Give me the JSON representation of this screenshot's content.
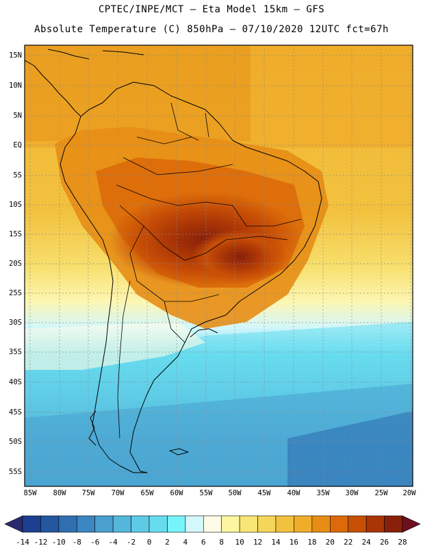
{
  "header": {
    "line1": "CPTEC/INPE/MCT –  Eta Model 15km – GFS",
    "line2": "Absolute Temperature (C) 850hPa – 07/10/2020 12UTC fct=67h"
  },
  "map": {
    "lat_labels": [
      "15N",
      "10N",
      "5N",
      "EQ",
      "5S",
      "10S",
      "15S",
      "20S",
      "25S",
      "30S",
      "35S",
      "40S",
      "45S",
      "50S",
      "55S"
    ],
    "lon_labels": [
      "85W",
      "80W",
      "75W",
      "70W",
      "65W",
      "60W",
      "55W",
      "50W",
      "45W",
      "40W",
      "35W",
      "30W",
      "25W",
      "20W"
    ]
  },
  "colorbar": {
    "labels": [
      "-14",
      "-12",
      "-10",
      "-8",
      "-6",
      "-4",
      "-2",
      "0",
      "2",
      "4",
      "6",
      "8",
      "10",
      "12",
      "14",
      "16",
      "18",
      "20",
      "22",
      "24",
      "26",
      "28"
    ],
    "colors": [
      "#1d3f8f",
      "#2556a0",
      "#2f6fb2",
      "#3c86c1",
      "#49a0cf",
      "#55b6db",
      "#5ecbe6",
      "#68dcef",
      "#77f3fb",
      "#d3f7fb",
      "#fdfbe6",
      "#fdf6a0",
      "#f9e576",
      "#f5d55a",
      "#f2c23f",
      "#efad2a",
      "#e78d15",
      "#dc6a09",
      "#c84f06",
      "#a93406",
      "#88200a"
    ],
    "left_arrow_color": "#2b2a6e",
    "right_arrow_color": "#6e0f20"
  }
}
